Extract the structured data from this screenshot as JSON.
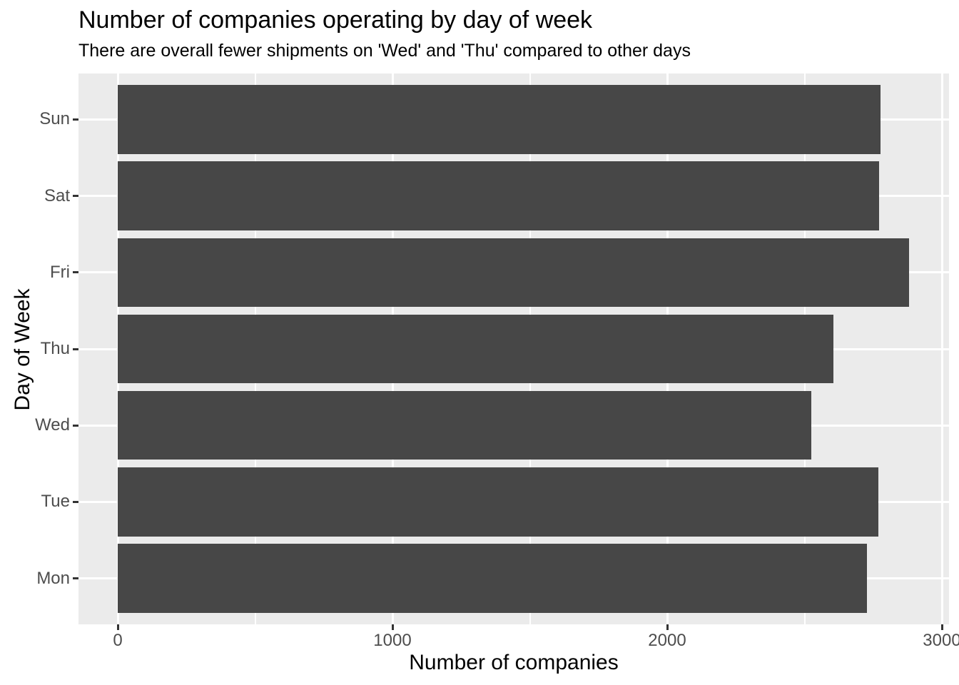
{
  "chart_data": {
    "type": "bar",
    "orientation": "horizontal",
    "title": "Number of companies operating by day of week",
    "subtitle": "There are overall fewer shipments on 'Wed' and 'Thu' compared to other days",
    "xlabel": "Number of companies",
    "ylabel": "Day of Week",
    "categories": [
      "Sun",
      "Sat",
      "Fri",
      "Thu",
      "Wed",
      "Tue",
      "Mon"
    ],
    "categories_order_note": "listed top-to-bottom as displayed; y axis runs Mon (bottom) to Sun (top)",
    "values": [
      2777,
      2771,
      2881,
      2605,
      2524,
      2769,
      2727
    ],
    "xlim": [
      0,
      3000
    ],
    "x_major_ticks": [
      0,
      1000,
      2000,
      3000
    ],
    "x_minor_gridlines": [
      500,
      1500,
      2500
    ],
    "grid": "white major and minor vertical gridlines plus white horizontal gridline at each category center, on gray panel",
    "legend": "none",
    "colors": {
      "bar": "#474747",
      "panel_background": "#EBEBEB",
      "gridline": "#FFFFFF",
      "tick_mark": "#333333",
      "tick_label": "#4D4D4D",
      "axis_title": "#000000",
      "title": "#000000"
    }
  }
}
